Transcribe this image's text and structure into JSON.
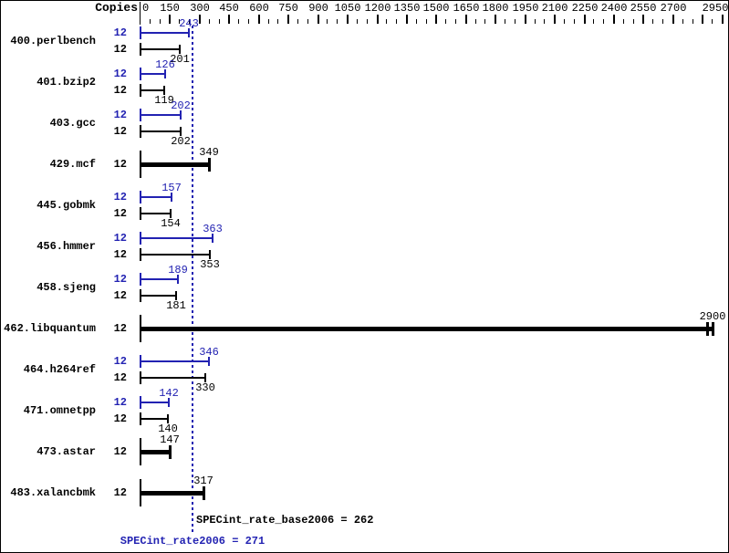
{
  "chart_data": {
    "type": "bar",
    "orientation": "horizontal",
    "copies_header": "Copies",
    "xlim": [
      0,
      2950
    ],
    "x_major_tick_step": 150,
    "x_minor_tick_step": 50,
    "x_tick_labels": [
      "0",
      "150",
      "300",
      "450",
      "600",
      "750",
      "900",
      "1050",
      "1200",
      "1350",
      "1500",
      "1650",
      "1800",
      "1950",
      "2100",
      "2250",
      "2400",
      "2550",
      "2700",
      "2950"
    ],
    "grid": "off",
    "legend": "none",
    "colors": {
      "peak": "#2222b2",
      "base": "#000000"
    },
    "benchmarks": [
      {
        "name": "400.perlbench",
        "bars": [
          {
            "kind": "peak",
            "copies": "12",
            "value": 243
          },
          {
            "kind": "base",
            "copies": "12",
            "value": 201
          }
        ]
      },
      {
        "name": "401.bzip2",
        "bars": [
          {
            "kind": "peak",
            "copies": "12",
            "value": 126
          },
          {
            "kind": "base",
            "copies": "12",
            "value": 119
          }
        ]
      },
      {
        "name": "403.gcc",
        "bars": [
          {
            "kind": "peak",
            "copies": "12",
            "value": 202
          },
          {
            "kind": "base",
            "copies": "12",
            "value": 202
          }
        ]
      },
      {
        "name": "429.mcf",
        "bars": [
          {
            "kind": "single",
            "copies": "12",
            "value": 349
          }
        ]
      },
      {
        "name": "445.gobmk",
        "bars": [
          {
            "kind": "peak",
            "copies": "12",
            "value": 157
          },
          {
            "kind": "base",
            "copies": "12",
            "value": 154
          }
        ]
      },
      {
        "name": "456.hmmer",
        "bars": [
          {
            "kind": "peak",
            "copies": "12",
            "value": 363
          },
          {
            "kind": "base",
            "copies": "12",
            "value": 353
          }
        ]
      },
      {
        "name": "458.sjeng",
        "bars": [
          {
            "kind": "peak",
            "copies": "12",
            "value": 189
          },
          {
            "kind": "base",
            "copies": "12",
            "value": 181
          }
        ]
      },
      {
        "name": "462.libquantum",
        "bars": [
          {
            "kind": "single",
            "copies": "12",
            "value": 2900,
            "end_ticks": 2
          }
        ]
      },
      {
        "name": "464.h264ref",
        "bars": [
          {
            "kind": "peak",
            "copies": "12",
            "value": 346
          },
          {
            "kind": "base",
            "copies": "12",
            "value": 330
          }
        ]
      },
      {
        "name": "471.omnetpp",
        "bars": [
          {
            "kind": "peak",
            "copies": "12",
            "value": 142
          },
          {
            "kind": "base",
            "copies": "12",
            "value": 140
          }
        ]
      },
      {
        "name": "473.astar",
        "bars": [
          {
            "kind": "single",
            "copies": "12",
            "value": 147
          }
        ]
      },
      {
        "name": "483.xalancbmk",
        "bars": [
          {
            "kind": "single",
            "copies": "12",
            "value": 317
          }
        ]
      }
    ],
    "reference_line": {
      "value": 262,
      "style": "dotted",
      "color": "#2222b2"
    },
    "summary": {
      "base": {
        "text": "SPECint_rate_base2006 = 262",
        "value": 262,
        "color": "#000000"
      },
      "peak": {
        "text": "SPECint_rate2006 = 271",
        "value": 271,
        "color": "#2222b2"
      }
    }
  }
}
